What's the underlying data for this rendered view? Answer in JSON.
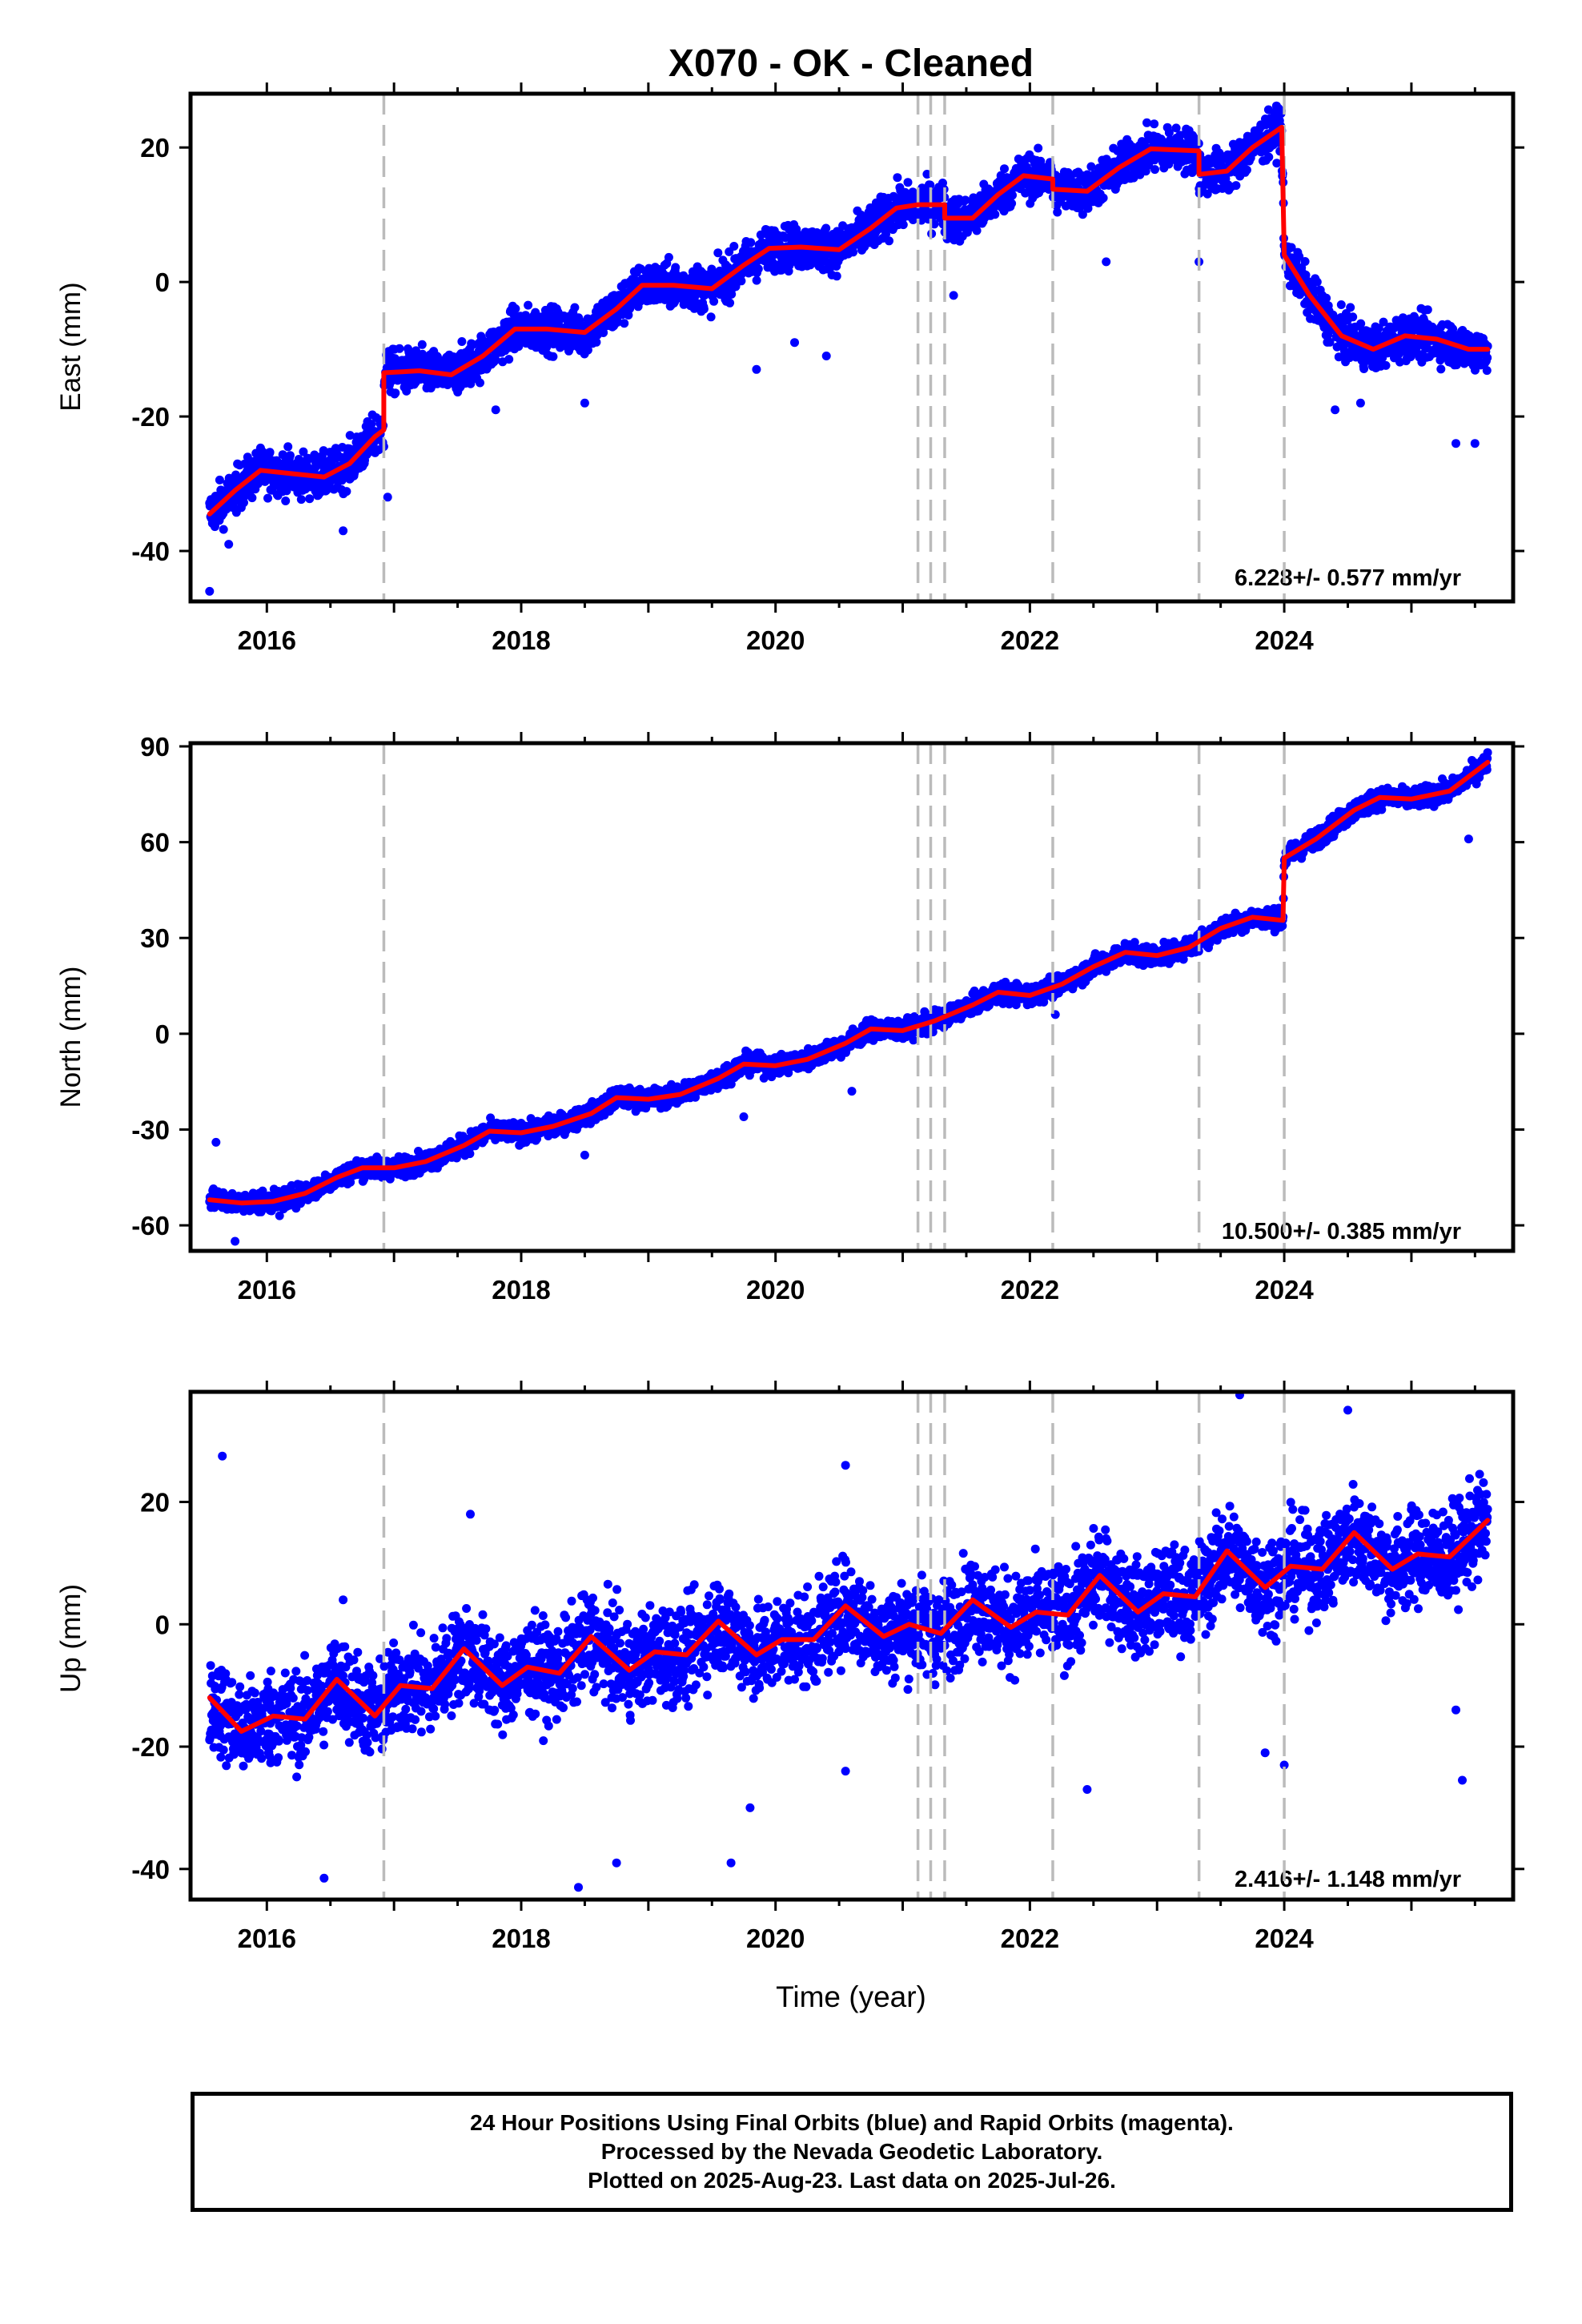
{
  "chart_data": {
    "type": "scatter",
    "title": "X070  - OK - Cleaned",
    "xlabel": "Time (year)",
    "xlim": [
      2015.4,
      2025.8
    ],
    "x_ticks": [
      "2016",
      "2018",
      "2020",
      "2022",
      "2024"
    ],
    "series_style": {
      "points": "#0000ff",
      "model": "#ff0000",
      "event_lines": "#bbbbbb"
    },
    "event_lines": [
      2016.92,
      2021.12,
      2021.22,
      2021.33,
      2022.18,
      2023.33,
      2024.0
    ],
    "panels": [
      {
        "name": "east",
        "ylabel": "East (mm)",
        "ylim": [
          -47.5,
          28
        ],
        "y_ticks": [
          -40,
          -20,
          0,
          20
        ],
        "rate_text": "6.228+/- 0.577 mm/yr",
        "model_curve": [
          [
            2015.55,
            -34.5
          ],
          [
            2015.75,
            -31
          ],
          [
            2015.95,
            -28
          ],
          [
            2016.2,
            -28.5
          ],
          [
            2016.45,
            -29
          ],
          [
            2016.65,
            -27
          ],
          [
            2016.85,
            -23
          ],
          [
            2016.92,
            -22
          ],
          [
            2016.92,
            -13.5
          ],
          [
            2017.2,
            -13.2
          ],
          [
            2017.45,
            -13.8
          ],
          [
            2017.7,
            -11
          ],
          [
            2017.95,
            -7
          ],
          [
            2018.2,
            -7
          ],
          [
            2018.5,
            -7.5
          ],
          [
            2018.75,
            -4
          ],
          [
            2018.95,
            -0.5
          ],
          [
            2019.2,
            -0.5
          ],
          [
            2019.5,
            -1
          ],
          [
            2019.75,
            2.5
          ],
          [
            2019.95,
            5
          ],
          [
            2020.2,
            5.2
          ],
          [
            2020.5,
            4.8
          ],
          [
            2020.75,
            8
          ],
          [
            2020.95,
            11
          ],
          [
            2021.12,
            11.5
          ],
          [
            2021.33,
            11.5
          ],
          [
            2021.33,
            9.5
          ],
          [
            2021.55,
            9.5
          ],
          [
            2021.75,
            13
          ],
          [
            2021.95,
            15.8
          ],
          [
            2022.18,
            15.3
          ],
          [
            2022.18,
            13.8
          ],
          [
            2022.45,
            13.5
          ],
          [
            2022.7,
            17
          ],
          [
            2022.95,
            19.8
          ],
          [
            2023.33,
            19.5
          ],
          [
            2023.33,
            16
          ],
          [
            2023.55,
            16.5
          ],
          [
            2023.75,
            20
          ],
          [
            2023.98,
            23
          ],
          [
            2024.0,
            4
          ],
          [
            2024.2,
            -2
          ],
          [
            2024.45,
            -8
          ],
          [
            2024.7,
            -10
          ],
          [
            2024.95,
            -8
          ],
          [
            2025.2,
            -8.5
          ],
          [
            2025.45,
            -10
          ],
          [
            2025.6,
            -10
          ]
        ],
        "scatter_spread": 2.3,
        "outliers": [
          [
            2015.55,
            -46
          ],
          [
            2015.7,
            -39
          ],
          [
            2016.6,
            -37
          ],
          [
            2016.95,
            -32
          ],
          [
            2017.8,
            -19
          ],
          [
            2018.5,
            -18
          ],
          [
            2019.85,
            -13
          ],
          [
            2020.15,
            -9
          ],
          [
            2020.4,
            -11
          ],
          [
            2021.4,
            -2
          ],
          [
            2023.33,
            3
          ],
          [
            2024.4,
            -19
          ],
          [
            2024.6,
            -18
          ],
          [
            2025.35,
            -24
          ],
          [
            2025.5,
            -24
          ],
          [
            2022.6,
            3
          ]
        ]
      },
      {
        "name": "north",
        "ylabel": "North (mm)",
        "ylim": [
          -68,
          91
        ],
        "y_ticks": [
          -60,
          -30,
          0,
          30,
          60,
          90
        ],
        "rate_text": "10.500+/- 0.385 mm/yr",
        "model_curve": [
          [
            2015.55,
            -52
          ],
          [
            2015.8,
            -53
          ],
          [
            2016.05,
            -52.5
          ],
          [
            2016.3,
            -50
          ],
          [
            2016.55,
            -45
          ],
          [
            2016.75,
            -42
          ],
          [
            2017.0,
            -42
          ],
          [
            2017.25,
            -40
          ],
          [
            2017.55,
            -35
          ],
          [
            2017.75,
            -30.5
          ],
          [
            2018.0,
            -31
          ],
          [
            2018.25,
            -29
          ],
          [
            2018.55,
            -25
          ],
          [
            2018.75,
            -20
          ],
          [
            2019.0,
            -20.5
          ],
          [
            2019.25,
            -19
          ],
          [
            2019.55,
            -14
          ],
          [
            2019.75,
            -9.5
          ],
          [
            2020.0,
            -10
          ],
          [
            2020.25,
            -8
          ],
          [
            2020.55,
            -3
          ],
          [
            2020.75,
            1.5
          ],
          [
            2021.0,
            1
          ],
          [
            2021.25,
            4
          ],
          [
            2021.55,
            9
          ],
          [
            2021.75,
            13
          ],
          [
            2022.0,
            12
          ],
          [
            2022.25,
            15.5
          ],
          [
            2022.5,
            21
          ],
          [
            2022.75,
            25.5
          ],
          [
            2023.0,
            24.5
          ],
          [
            2023.25,
            27
          ],
          [
            2023.5,
            33
          ],
          [
            2023.75,
            36.5
          ],
          [
            2023.99,
            35.5
          ],
          [
            2024.0,
            55
          ],
          [
            2024.25,
            61
          ],
          [
            2024.55,
            70
          ],
          [
            2024.75,
            74
          ],
          [
            2025.0,
            73.5
          ],
          [
            2025.3,
            76
          ],
          [
            2025.6,
            85
          ]
        ],
        "scatter_spread": 2.2,
        "outliers": [
          [
            2015.6,
            -34
          ],
          [
            2015.75,
            -65
          ],
          [
            2016.1,
            -57
          ],
          [
            2019.75,
            -26
          ],
          [
            2020.6,
            -18
          ],
          [
            2025.45,
            61
          ],
          [
            2018.5,
            -38
          ],
          [
            2022.2,
            6
          ]
        ]
      },
      {
        "name": "up",
        "ylabel": "Up (mm)",
        "ylim": [
          -45,
          38
        ],
        "y_ticks": [
          -40,
          -20,
          0,
          20
        ],
        "rate_text": "2.416+/- 1.148 mm/yr",
        "model_curve": [
          [
            2015.55,
            -12
          ],
          [
            2015.8,
            -17.5
          ],
          [
            2016.05,
            -15
          ],
          [
            2016.3,
            -15.5
          ],
          [
            2016.55,
            -9
          ],
          [
            2016.85,
            -15
          ],
          [
            2017.05,
            -10
          ],
          [
            2017.3,
            -10.5
          ],
          [
            2017.55,
            -4
          ],
          [
            2017.85,
            -10
          ],
          [
            2018.05,
            -7
          ],
          [
            2018.3,
            -8
          ],
          [
            2018.55,
            -2
          ],
          [
            2018.85,
            -7.5
          ],
          [
            2019.05,
            -4.5
          ],
          [
            2019.3,
            -5
          ],
          [
            2019.55,
            0.5
          ],
          [
            2019.85,
            -5
          ],
          [
            2020.05,
            -2.5
          ],
          [
            2020.3,
            -2.5
          ],
          [
            2020.55,
            3
          ],
          [
            2020.85,
            -2
          ],
          [
            2021.05,
            0
          ],
          [
            2021.3,
            -1.5
          ],
          [
            2021.55,
            4
          ],
          [
            2021.85,
            -0.5
          ],
          [
            2022.05,
            2
          ],
          [
            2022.3,
            1.5
          ],
          [
            2022.55,
            8
          ],
          [
            2022.85,
            2
          ],
          [
            2023.05,
            5
          ],
          [
            2023.3,
            4.5
          ],
          [
            2023.55,
            12
          ],
          [
            2023.85,
            6
          ],
          [
            2024.05,
            9.5
          ],
          [
            2024.3,
            9
          ],
          [
            2024.55,
            15
          ],
          [
            2024.85,
            9
          ],
          [
            2025.05,
            11.5
          ],
          [
            2025.3,
            11
          ],
          [
            2025.6,
            17
          ]
        ],
        "scatter_spread": 5.5,
        "outliers": [
          [
            2015.65,
            27.5
          ],
          [
            2016.45,
            -41.5
          ],
          [
            2018.45,
            -43
          ],
          [
            2018.75,
            -39
          ],
          [
            2019.65,
            -39
          ],
          [
            2019.8,
            -30
          ],
          [
            2020.55,
            -24
          ],
          [
            2023.65,
            37.5
          ],
          [
            2024.0,
            -23
          ],
          [
            2023.85,
            -21
          ],
          [
            2025.4,
            -25.5
          ],
          [
            2025.35,
            -14
          ],
          [
            2024.5,
            35
          ],
          [
            2020.55,
            26
          ],
          [
            2016.6,
            4
          ],
          [
            2017.6,
            18
          ],
          [
            2022.45,
            -27
          ]
        ]
      }
    ]
  },
  "footer": {
    "line1": "24 Hour Positions Using Final Orbits (blue) and Rapid Orbits (magenta).",
    "line2": "Processed by the Nevada Geodetic Laboratory.",
    "line3": "Plotted on 2025-Aug-23. Last data on 2025-Jul-26."
  }
}
